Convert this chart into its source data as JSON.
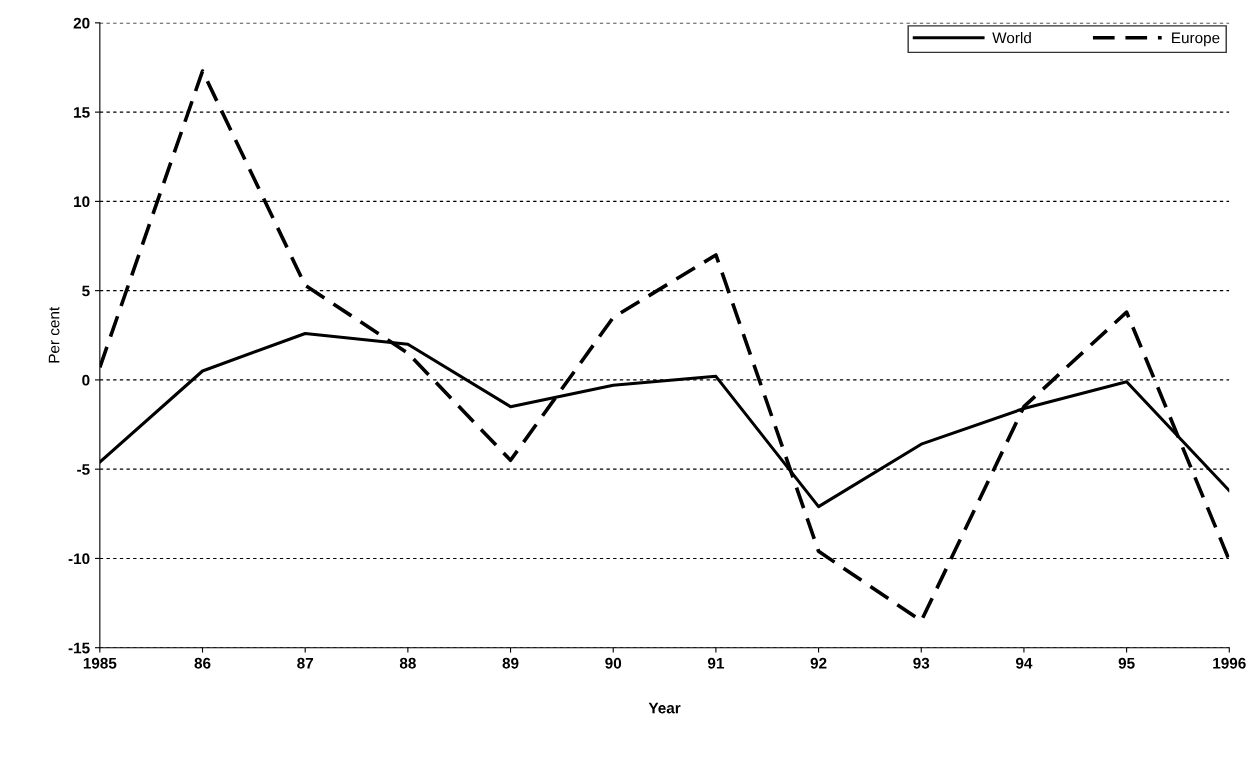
{
  "chart_data": {
    "type": "line",
    "xlabel": "Year",
    "ylabel": "Per cent",
    "x": [
      1985,
      1986,
      1987,
      1988,
      1989,
      1990,
      1991,
      1992,
      1993,
      1994,
      1995,
      1996
    ],
    "series": [
      {
        "name": "World",
        "color": "#000000",
        "line_style": "solid",
        "values": [
          -4.6,
          0.5,
          2.6,
          2.0,
          -1.5,
          -0.3,
          0.2,
          -7.1,
          -3.6,
          -1.6,
          -0.1,
          -6.2
        ]
      },
      {
        "name": "Europe",
        "color": "#000000",
        "line_style": "dashed",
        "values": [
          0.7,
          17.3,
          5.3,
          1.5,
          -4.5,
          3.5,
          7.0,
          -9.6,
          -13.5,
          -1.5,
          3.8,
          -10.1
        ]
      }
    ],
    "xlim": [
      1985,
      1996
    ],
    "xticks": [
      {
        "value": 1985,
        "label": "1985"
      },
      {
        "value": 1986,
        "label": "86"
      },
      {
        "value": 1987,
        "label": "87"
      },
      {
        "value": 1988,
        "label": "88"
      },
      {
        "value": 1989,
        "label": "89"
      },
      {
        "value": 1990,
        "label": "90"
      },
      {
        "value": 1991,
        "label": "91"
      },
      {
        "value": 1992,
        "label": "92"
      },
      {
        "value": 1993,
        "label": "93"
      },
      {
        "value": 1994,
        "label": "94"
      },
      {
        "value": 1995,
        "label": "95"
      },
      {
        "value": 1996,
        "label": "1996"
      }
    ],
    "ylim": [
      -15,
      20
    ],
    "yticks": [
      -15,
      -10,
      -5,
      0,
      5,
      10,
      15,
      20
    ],
    "grid": "y",
    "legend": "top right",
    "marker": "none"
  }
}
